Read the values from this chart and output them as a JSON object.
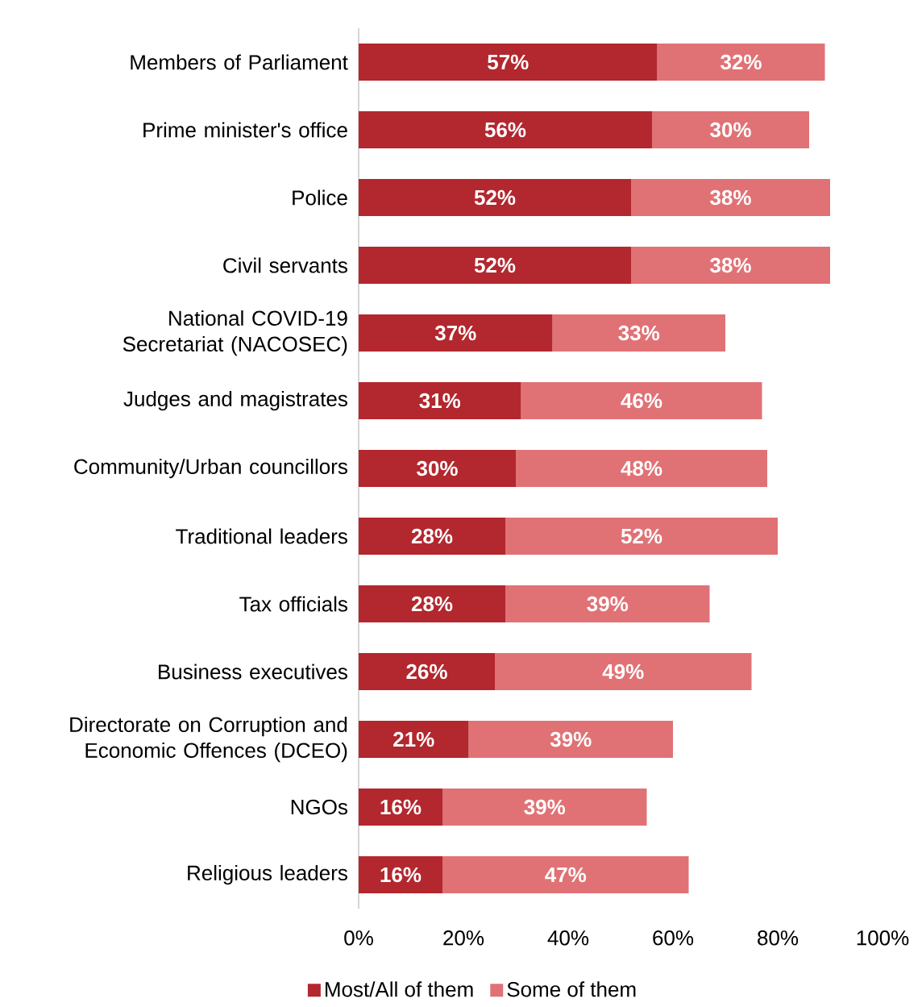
{
  "chart_data": {
    "type": "bar",
    "orientation": "horizontal",
    "stacked": true,
    "categories": [
      "Members of Parliament",
      "Prime minister's office",
      "Police",
      "Civil servants",
      "National COVID-19 Secretariat (NACOSEC)",
      "Judges and magistrates",
      "Community/Urban councillors",
      "Traditional leaders",
      "Tax officials",
      "Business executives",
      "Directorate on Corruption and Economic Offences (DCEO)",
      "NGOs",
      "Religious leaders"
    ],
    "series": [
      {
        "name": "Most/All of them",
        "color": "#b3272e",
        "values": [
          57,
          56,
          52,
          52,
          37,
          31,
          30,
          28,
          28,
          26,
          21,
          16,
          16
        ],
        "value_labels": [
          "57%",
          "56%",
          "52%",
          "52%",
          "37%",
          "31%",
          "30%",
          "28%",
          "28%",
          "26%",
          "21%",
          "16%",
          "16%"
        ]
      },
      {
        "name": "Some of them",
        "color": "#e07275",
        "values": [
          32,
          30,
          38,
          38,
          33,
          46,
          48,
          52,
          39,
          49,
          39,
          39,
          47
        ],
        "value_labels": [
          "32%",
          "30%",
          "38%",
          "38%",
          "33%",
          "46%",
          "48%",
          "52%",
          "39%",
          "49%",
          "39%",
          "39%",
          "47%"
        ]
      }
    ],
    "xlim": [
      0,
      100
    ],
    "xticks": [
      {
        "value": 0,
        "label": "0%"
      },
      {
        "value": 20,
        "label": "20%"
      },
      {
        "value": 40,
        "label": "40%"
      },
      {
        "value": 60,
        "label": "60%"
      },
      {
        "value": 80,
        "label": "80%"
      },
      {
        "value": 100,
        "label": "100%"
      }
    ],
    "grid": false,
    "legend": "bottom"
  }
}
